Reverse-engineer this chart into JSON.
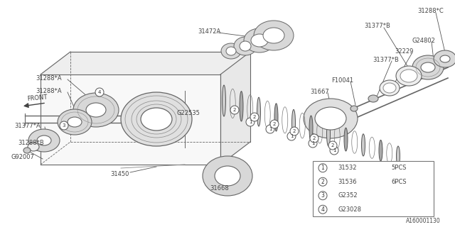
{
  "bg_color": "#ffffff",
  "line_color": "#666666",
  "text_color": "#444444",
  "diagram_code": "A160001130",
  "legend_items": [
    {
      "num": "1",
      "code": "31532",
      "qty": "5PCS"
    },
    {
      "num": "2",
      "code": "31536",
      "qty": "6PCS"
    },
    {
      "num": "3",
      "code": "G2352",
      "qty": ""
    },
    {
      "num": "4",
      "code": "G23028",
      "qty": ""
    }
  ],
  "figsize": [
    6.4,
    3.2
  ],
  "dpi": 100
}
